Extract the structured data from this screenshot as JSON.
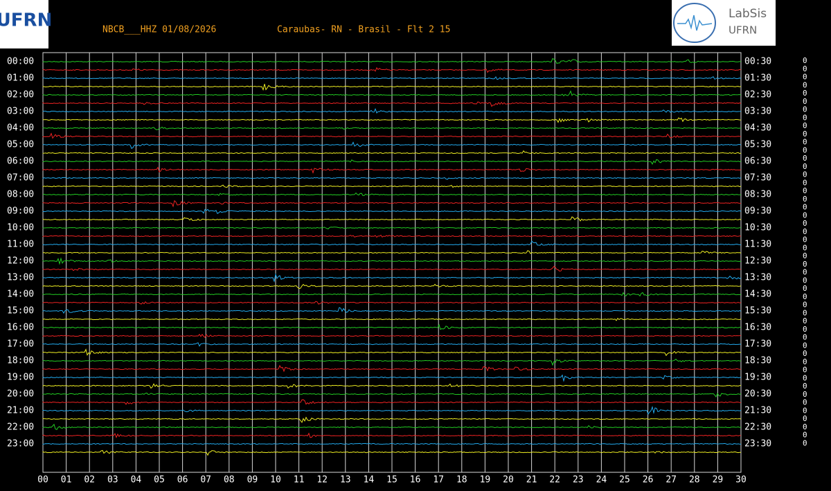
{
  "header": {
    "station": "NBCB___HHZ 01/08/2026",
    "location": "Caraubas- RN - Brasil - Flt 2 15",
    "logo_left": "UFRN",
    "logo_right": [
      "LabSis",
      "UFRN"
    ]
  },
  "left_labels": [
    "00:00",
    "01:00",
    "02:00",
    "03:00",
    "04:00",
    "05:00",
    "06:00",
    "07:00",
    "08:00",
    "09:00",
    "10:00",
    "11:00",
    "12:00",
    "13:00",
    "14:00",
    "15:00",
    "16:00",
    "17:00",
    "18:00",
    "19:00",
    "20:00",
    "21:00",
    "22:00",
    "23:00"
  ],
  "right_labels": [
    "00:30",
    "01:30",
    "02:30",
    "03:30",
    "04:30",
    "05:30",
    "06:30",
    "07:30",
    "08:30",
    "09:30",
    "10:30",
    "11:30",
    "12:30",
    "13:30",
    "14:30",
    "15:30",
    "16:30",
    "17:30",
    "18:30",
    "19:30",
    "20:30",
    "21:30",
    "22:30",
    "23:30"
  ],
  "x_labels": [
    "00",
    "01",
    "02",
    "03",
    "04",
    "05",
    "06",
    "07",
    "08",
    "09",
    "10",
    "11",
    "12",
    "13",
    "14",
    "15",
    "16",
    "17",
    "18",
    "19",
    "20",
    "21",
    "22",
    "23",
    "24",
    "25",
    "26",
    "27",
    "28",
    "29",
    "30"
  ],
  "right_column": [
    "0",
    "0",
    "0",
    "0",
    "0",
    "0",
    "0",
    "0",
    "0",
    "0",
    "0",
    "0",
    "0",
    "0",
    "0",
    "0",
    "0",
    "0",
    "0",
    "0",
    "0",
    "0",
    "0",
    "0",
    "0",
    "0",
    "0",
    "0",
    "0",
    "0",
    "0",
    "0",
    "0",
    "0",
    "0",
    "0",
    "0",
    "0",
    "0",
    "0",
    "0",
    "0",
    "0",
    "0",
    "0",
    "0",
    "0",
    "0"
  ]
}
